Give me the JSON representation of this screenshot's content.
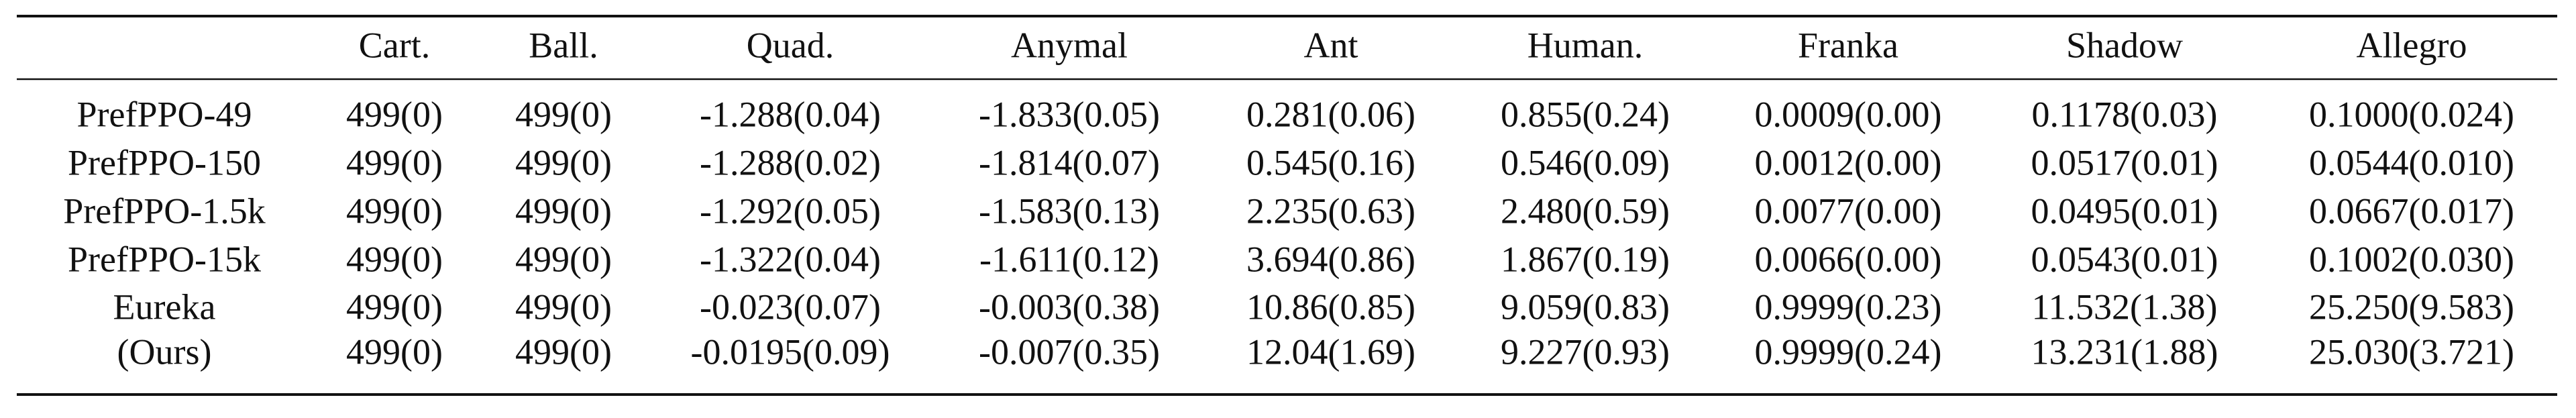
{
  "table": {
    "columns": [
      "Cart.",
      "Ball.",
      "Quad.",
      "Anymal",
      "Ant",
      "Human.",
      "Franka",
      "Shadow",
      "Allegro"
    ],
    "rows": [
      {
        "label": "PrefPPO-49",
        "cells": [
          "499(0)",
          "499(0)",
          "-1.288(0.04)",
          "-1.833(0.05)",
          "0.281(0.06)",
          "0.855(0.24)",
          "0.0009(0.00)",
          "0.1178(0.03)",
          "0.1000(0.024)"
        ]
      },
      {
        "label": "PrefPPO-150",
        "cells": [
          "499(0)",
          "499(0)",
          "-1.288(0.02)",
          "-1.814(0.07)",
          "0.545(0.16)",
          "0.546(0.09)",
          "0.0012(0.00)",
          "0.0517(0.01)",
          "0.0544(0.010)"
        ]
      },
      {
        "label": "PrefPPO-1.5k",
        "cells": [
          "499(0)",
          "499(0)",
          "-1.292(0.05)",
          "-1.583(0.13)",
          "2.235(0.63)",
          "2.480(0.59)",
          "0.0077(0.00)",
          "0.0495(0.01)",
          "0.0667(0.017)"
        ]
      },
      {
        "label": "PrefPPO-15k",
        "cells": [
          "499(0)",
          "499(0)",
          "-1.322(0.04)",
          "-1.611(0.12)",
          "3.694(0.86)",
          "1.867(0.19)",
          "0.0066(0.00)",
          "0.0543(0.01)",
          "0.1002(0.030)"
        ]
      },
      {
        "label": "Eureka",
        "cells": [
          "499(0)",
          "499(0)",
          "-0.023(0.07)",
          "-0.003(0.38)",
          "10.86(0.85)",
          "9.059(0.83)",
          "0.9999(0.23)",
          "11.532(1.38)",
          "25.250(9.583)"
        ]
      },
      {
        "label": "(Ours)",
        "cells": [
          "499(0)",
          "499(0)",
          "-0.0195(0.09)",
          "-0.007(0.35)",
          "12.04(1.69)",
          "9.227(0.93)",
          "0.9999(0.24)",
          "13.231(1.88)",
          "25.030(3.721)"
        ]
      }
    ]
  }
}
